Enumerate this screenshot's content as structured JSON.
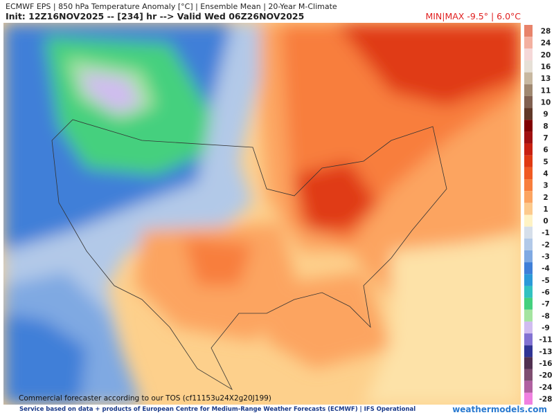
{
  "header": {
    "title": "ECMWF EPS | 850 hPa Temperature Anomaly [°C] | Ensemble Mean | 20-Year M-Climate",
    "subtitle": "Init: 12Z16NOV2025 -- [234] hr --> Valid Wed 06Z26NOV2025",
    "minmax": "MIN|MAX -9.5° | 6.0°C"
  },
  "colorbar": {
    "labels": [
      28,
      24,
      20,
      16,
      13,
      11,
      10,
      9,
      8,
      7,
      6,
      5,
      4,
      3,
      2,
      1,
      0,
      -1,
      -2,
      -3,
      -4,
      -5,
      -6,
      -7,
      -8,
      -9,
      -11,
      -13,
      -16,
      -20,
      -24,
      -28
    ],
    "colors": [
      "#e8836a",
      "#f3b0a0",
      "#f5d8d8",
      "#e6e0d6",
      "#c8b8a0",
      "#a08870",
      "#806050",
      "#603828",
      "#800000",
      "#a01010",
      "#c82010",
      "#e03a12",
      "#f05a22",
      "#f87e3c",
      "#fca460",
      "#fdca8c",
      "#fff3c4",
      "#d6dfea",
      "#b2c9e8",
      "#7fa9e2",
      "#3f7fd8",
      "#2c9ad8",
      "#32c2c0",
      "#44d07e",
      "#a4e4a0",
      "#d0bcf0",
      "#8272d2",
      "#303494",
      "#503050",
      "#7e4e70",
      "#b060a0",
      "#f080e0"
    ]
  },
  "map_note": "Commercial forecaster according to our TOS (cf11153u24X2g20J199)",
  "footer": {
    "credit": "Service based on data + products of European Centre for Medium-Range Weather Forecasts (ECMWF) | IFS Operational",
    "site": "weathermodels.com"
  }
}
